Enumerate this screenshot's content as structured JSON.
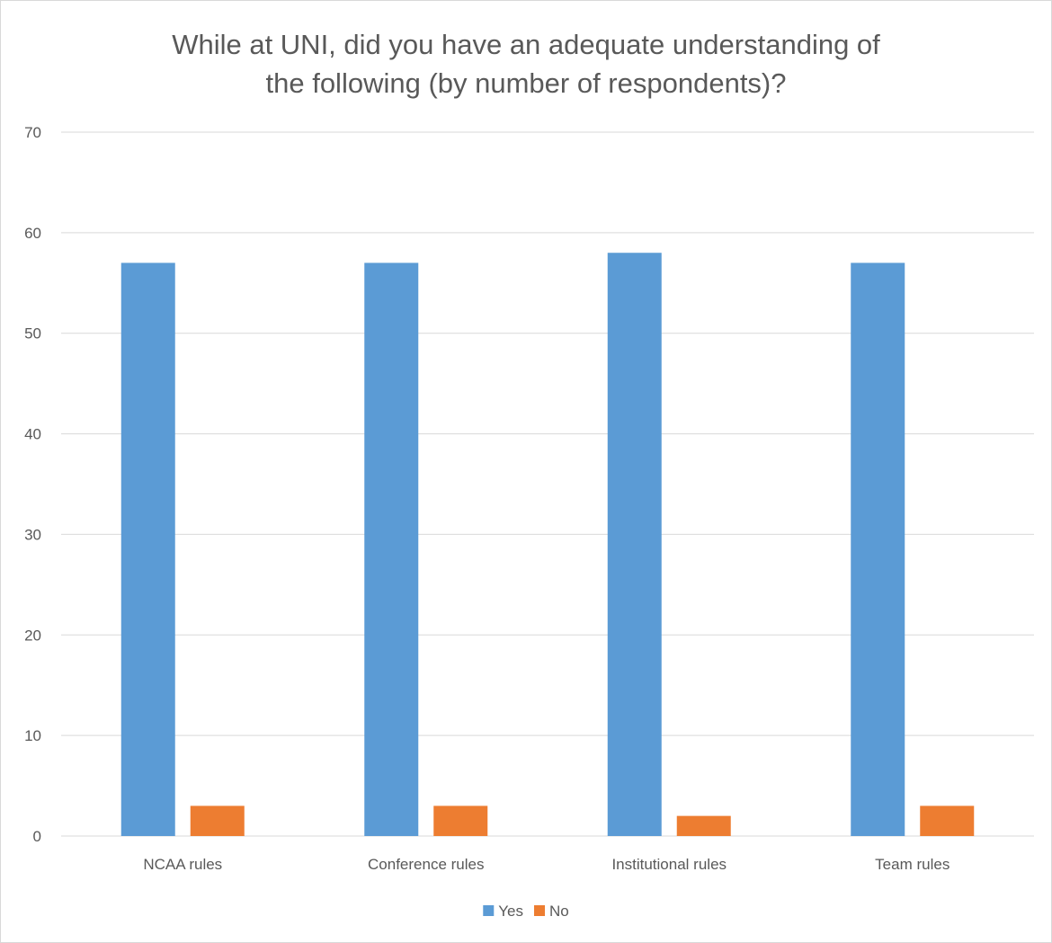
{
  "chart_data": {
    "type": "bar",
    "title_lines": [
      "While at UNI, did you have an adequate understanding of",
      "the following (by number of respondents)?"
    ],
    "categories": [
      "NCAA rules",
      "Conference rules",
      "Institutional rules",
      "Team rules"
    ],
    "series": [
      {
        "name": "Yes",
        "color": "#5b9bd5",
        "values": [
          57,
          57,
          58,
          57
        ]
      },
      {
        "name": "No",
        "color": "#ed7d31",
        "values": [
          3,
          3,
          2,
          3
        ]
      }
    ],
    "y_ticks": [
      0,
      10,
      20,
      30,
      40,
      50,
      60,
      70
    ],
    "ylim": [
      0,
      70
    ],
    "grid": true,
    "gridline_color": "#d9d9d9",
    "legend_position": "bottom"
  }
}
